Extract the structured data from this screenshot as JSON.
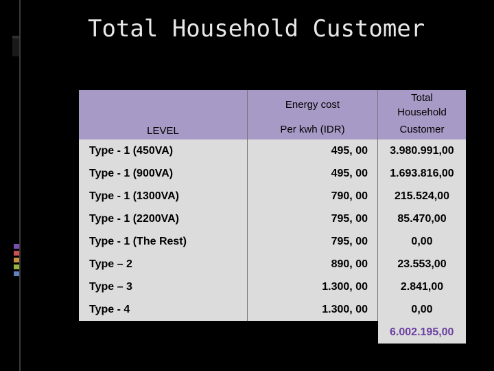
{
  "slide": {
    "title": "Total Household Customer"
  },
  "table": {
    "headers": {
      "level": "LEVEL",
      "energy_cost_line1": "Energy cost",
      "energy_cost_line2": "Per kwh (IDR)",
      "total_household_line1": "Total",
      "total_household_line2": "Household",
      "total_household_line3": "Customer"
    },
    "rows": [
      {
        "level": "Type - 1 (450VA)",
        "cost": "495, 00",
        "customers": "3.980.991,00"
      },
      {
        "level": "Type - 1 (900VA)",
        "cost": "495, 00",
        "customers": "1.693.816,00"
      },
      {
        "level": "Type - 1 (1300VA)",
        "cost": "790, 00",
        "customers": "215.524,00"
      },
      {
        "level": "Type - 1 (2200VA)",
        "cost": "795, 00",
        "customers": "85.470,00"
      },
      {
        "level": "Type - 1 (The Rest)",
        "cost": "795, 00",
        "customers": "0,00"
      },
      {
        "level": "Type – 2",
        "cost": "890, 00",
        "customers": "23.553,00"
      },
      {
        "level": "Type – 3",
        "cost": "1.300, 00",
        "customers": "2.841,00"
      },
      {
        "level": "Type - 4",
        "cost": "1.300, 00",
        "customers": "0,00"
      }
    ],
    "total": "6.002.195,00"
  },
  "colors": {
    "header_bg": "#a89ac6",
    "cell_bg": "#dcdcdc",
    "total_text": "#6b3fa0",
    "deco_bars": [
      "#7a4fb0",
      "#c85050",
      "#c89040",
      "#9ab040",
      "#6080c0"
    ]
  }
}
